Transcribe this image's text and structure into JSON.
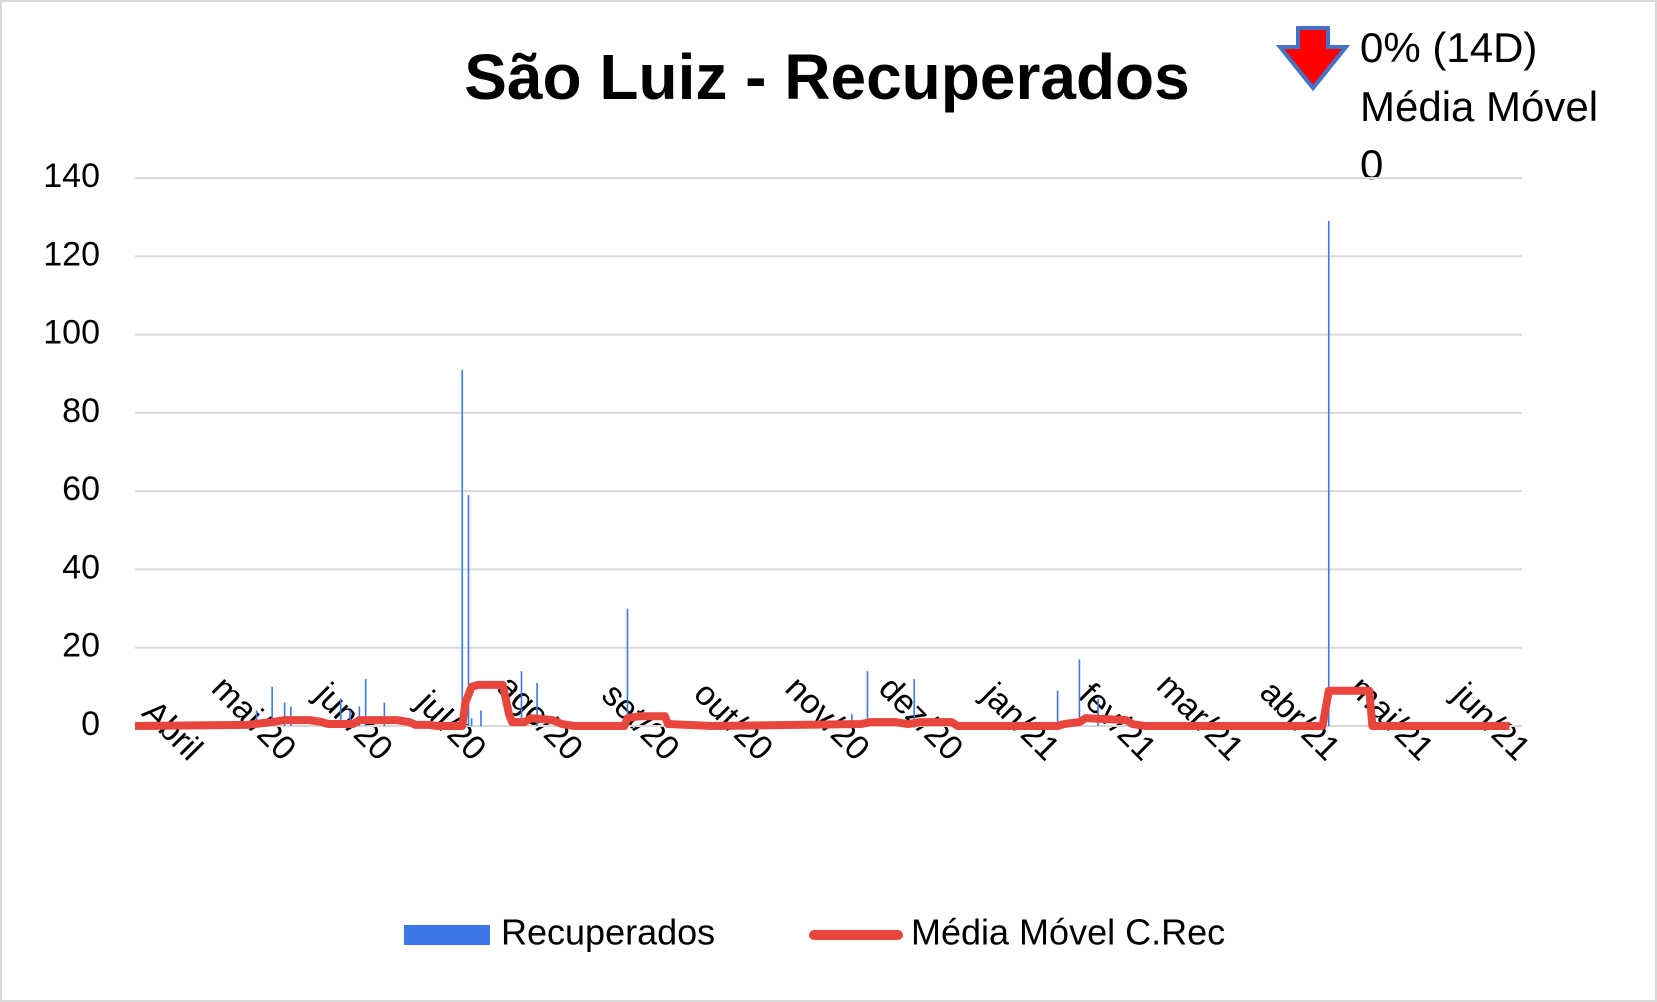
{
  "chart_data": {
    "type": "bar_line",
    "title": "São Luiz - Recuperados",
    "annotation": [
      "0% (14D)",
      "Média Móvel",
      "0"
    ],
    "xlim": [
      0,
      445
    ],
    "xticks": [
      {
        "value": 0,
        "label": "Abril"
      },
      {
        "value": 30,
        "label": "mai/20"
      },
      {
        "value": 61,
        "label": "jun/20"
      },
      {
        "value": 91,
        "label": "jul/20"
      },
      {
        "value": 122,
        "label": "ago/20"
      },
      {
        "value": 153,
        "label": "set/20"
      },
      {
        "value": 183,
        "label": "out/20"
      },
      {
        "value": 214,
        "label": "nov/20"
      },
      {
        "value": 244,
        "label": "dez/20"
      },
      {
        "value": 275,
        "label": "jan/21"
      },
      {
        "value": 306,
        "label": "fev/21"
      },
      {
        "value": 334,
        "label": "mar/21"
      },
      {
        "value": 365,
        "label": "abr/21"
      },
      {
        "value": 395,
        "label": "mai/21"
      },
      {
        "value": 426,
        "label": "jun/21"
      }
    ],
    "ylim": [
      0,
      140
    ],
    "yticks": [
      0,
      20,
      40,
      60,
      80,
      100,
      120,
      140
    ],
    "grid": true,
    "legend": "bottom",
    "series": [
      {
        "name": "Recuperados",
        "kind": "bar",
        "color": "#3c78e6",
        "x": [
          39,
          44,
          48,
          50,
          66,
          69,
          72,
          74,
          80,
          105,
          107,
          108,
          111,
          124,
          129,
          158,
          230,
          235,
          250,
          296,
          303,
          309,
          383
        ],
        "values": [
          4,
          10,
          6,
          5,
          7,
          4,
          5,
          12,
          6,
          91,
          59,
          2,
          4,
          14,
          11,
          30,
          3,
          14,
          12,
          9,
          17,
          7,
          129
        ]
      },
      {
        "name": "Média Móvel C.Rec",
        "kind": "line",
        "color": "#e8453c",
        "x": [
          0,
          36,
          44,
          48,
          56,
          60,
          62,
          70,
          72,
          84,
          88,
          90,
          94,
          97,
          105,
          106,
          108,
          110,
          118,
          120,
          121,
          125,
          127,
          134,
          137,
          141,
          157,
          158,
          162,
          170,
          171,
          185,
          233,
          236,
          244,
          248,
          252,
          262,
          264,
          296,
          298,
          303,
          305,
          318,
          320,
          324,
          381,
          383,
          396,
          397,
          441
        ],
        "values": [
          0,
          0.3,
          1,
          1.5,
          1.5,
          1,
          0.5,
          0.5,
          1.5,
          1.5,
          1,
          0.3,
          0.3,
          0,
          0,
          6,
          10,
          10.5,
          10.5,
          3,
          1,
          1,
          2,
          1.5,
          0.5,
          0,
          0,
          2,
          2.5,
          2.5,
          0.5,
          0,
          0.5,
          1,
          1,
          0.5,
          1,
          1,
          0,
          0,
          0.5,
          1,
          2,
          1.5,
          0.5,
          0,
          0,
          9,
          9,
          0,
          0
        ]
      }
    ]
  }
}
